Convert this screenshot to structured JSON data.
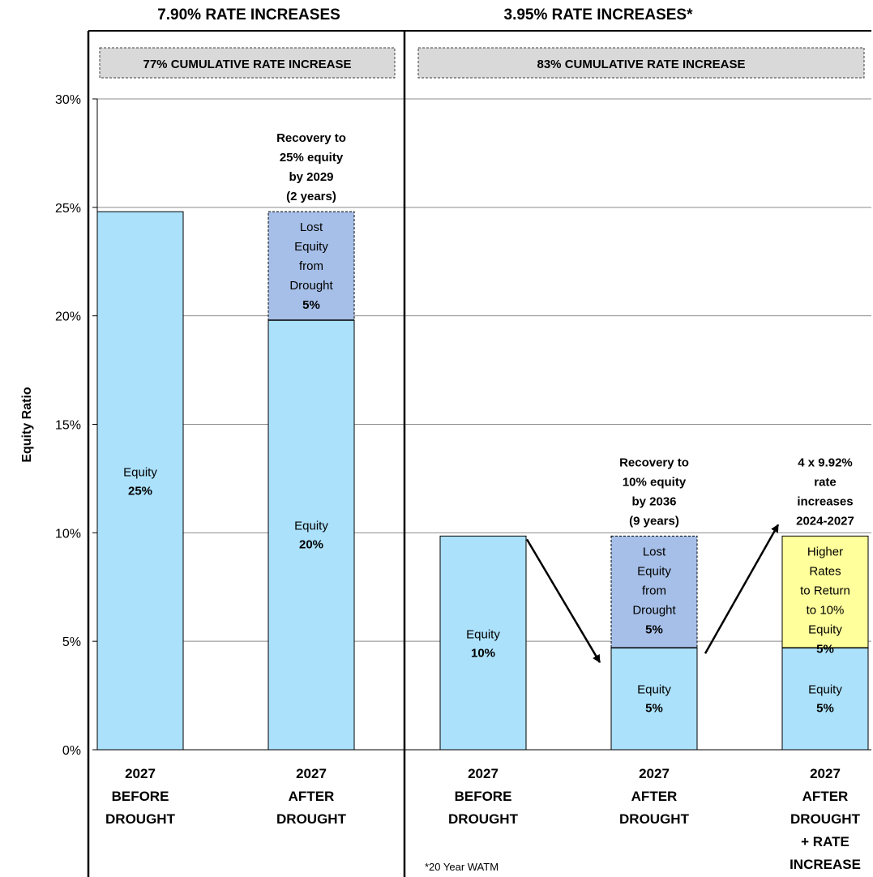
{
  "chart_data": {
    "type": "bar",
    "stacked": true,
    "ylabel": "Equity Ratio",
    "ylim": [
      0,
      30
    ],
    "yticks": [
      "0%",
      "5%",
      "10%",
      "15%",
      "20%",
      "25%",
      "30%"
    ],
    "grid": true,
    "panels": [
      {
        "title": "7.90% RATE INCREASES",
        "banner": "77% CUMULATIVE RATE INCREASE",
        "bars": [
          {
            "category": [
              "2027",
              "BEFORE",
              "DROUGHT"
            ],
            "segments": [
              {
                "label": [
                  "Equity",
                  "25%"
                ],
                "value": 24.8,
                "color": "#abe1fb",
                "dashed": false
              }
            ]
          },
          {
            "category": [
              "2027",
              "AFTER",
              "DROUGHT"
            ],
            "note": [
              "Recovery to",
              "25% equity",
              "by 2029",
              "(2 years)"
            ],
            "segments": [
              {
                "label": [
                  "Equity",
                  "20%"
                ],
                "value": 19.8,
                "color": "#abe1fb",
                "dashed": false
              },
              {
                "label": [
                  "Lost",
                  "Equity",
                  "from",
                  "Drought",
                  "5%"
                ],
                "value": 5.0,
                "color": "#a6bfe8",
                "dashed": true
              }
            ]
          }
        ]
      },
      {
        "title": "3.95% RATE INCREASES*",
        "banner": "83% CUMULATIVE RATE INCREASE",
        "bars": [
          {
            "category": [
              "2027",
              "BEFORE",
              "DROUGHT"
            ],
            "segments": [
              {
                "label": [
                  "Equity",
                  "10%"
                ],
                "value": 9.85,
                "color": "#abe1fb",
                "dashed": false
              }
            ]
          },
          {
            "category": [
              "2027",
              "AFTER",
              "DROUGHT"
            ],
            "note": [
              "Recovery to",
              "10% equity",
              "by 2036",
              "(9 years)"
            ],
            "segments": [
              {
                "label": [
                  "Equity",
                  "5%"
                ],
                "value": 4.7,
                "color": "#abe1fb",
                "dashed": false
              },
              {
                "label": [
                  "Lost",
                  "Equity",
                  "from",
                  "Drought",
                  "5%"
                ],
                "value": 5.15,
                "color": "#a6bfe8",
                "dashed": true
              }
            ]
          },
          {
            "category": [
              "2027",
              "AFTER",
              "DROUGHT",
              "+ RATE",
              "INCREASE"
            ],
            "note": [
              "4 x 9.92%",
              "rate",
              "increases",
              "2024-2027"
            ],
            "segments": [
              {
                "label": [
                  "Equity",
                  "5%"
                ],
                "value": 4.7,
                "color": "#abe1fb",
                "dashed": false
              },
              {
                "label": [
                  "Higher",
                  "Rates",
                  "to Return",
                  "to 10%",
                  "Equity",
                  "5%"
                ],
                "value": 5.15,
                "color": "#ffff9b",
                "dashed": false
              }
            ]
          }
        ]
      }
    ],
    "footnote": "*20 Year WATM"
  }
}
